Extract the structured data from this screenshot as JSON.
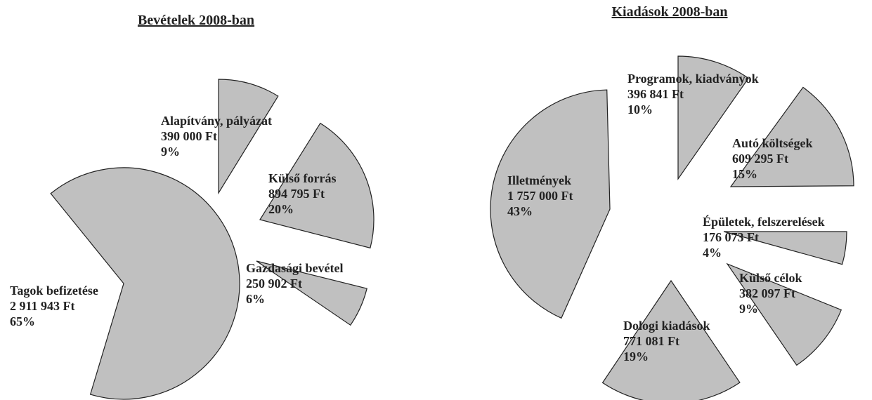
{
  "chart_data": [
    {
      "type": "pie",
      "title": "Bevételek 2008-ban",
      "slices": [
        {
          "label": "Tagok befizetése",
          "amount": "2 911 943 Ft",
          "percent": "65%",
          "value": 2911943
        },
        {
          "label": "Alapítvány, pályázat",
          "amount": "390 000 Ft",
          "percent": "9%",
          "value": 390000
        },
        {
          "label": "Külső forrás",
          "amount": "894 795 Ft",
          "percent": "20%",
          "value": 894795
        },
        {
          "label": "Gazdasági bevétel",
          "amount": "250 902 Ft",
          "percent": "6%",
          "value": 250902
        }
      ]
    },
    {
      "type": "pie",
      "title": "Kiadások 2008-ban",
      "slices": [
        {
          "label": "Illetmények",
          "amount": "1 757 000 Ft",
          "percent": "43%",
          "value": 1757000
        },
        {
          "label": "Programok, kiadványok",
          "amount": "396 841 Ft",
          "percent": "10%",
          "value": 396841
        },
        {
          "label": "Autó költségek",
          "amount": "609 295 Ft",
          "percent": "15%",
          "value": 609295
        },
        {
          "label": "Épületek, felszerelések",
          "amount": "176 073 Ft",
          "percent": "4%",
          "value": 176073
        },
        {
          "label": "Külső célok",
          "amount": "382 097 Ft",
          "percent": "9%",
          "value": 382097
        },
        {
          "label": "Dologi kiadások",
          "amount": "771 081 Ft",
          "percent": "19%",
          "value": 771081
        }
      ]
    }
  ]
}
